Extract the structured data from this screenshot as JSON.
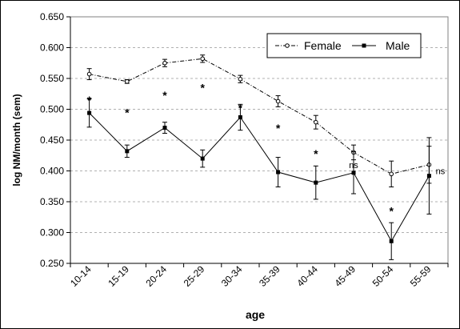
{
  "chart_data": {
    "type": "line",
    "title": "",
    "xlabel": "age",
    "ylabel": "log NM/month (sem)",
    "ylim": [
      0.25,
      0.65
    ],
    "yticks": [
      "0.250",
      "0.300",
      "0.350",
      "0.400",
      "0.450",
      "0.500",
      "0.550",
      "0.600",
      "0.650"
    ],
    "ytick_values": [
      0.25,
      0.3,
      0.35,
      0.4,
      0.45,
      0.5,
      0.55,
      0.6,
      0.65
    ],
    "categories": [
      "10-14",
      "15-19",
      "20-24",
      "25-29",
      "30-34",
      "35-39",
      "40-44",
      "45-49",
      "50-54",
      "55-59"
    ],
    "grid": "horizontal dashed",
    "legend_position": "top-right",
    "series": [
      {
        "name": "Female",
        "style": "dash-dot line, open circle markers",
        "color": "#000000",
        "values": [
          0.557,
          0.545,
          0.575,
          0.582,
          0.549,
          0.513,
          0.479,
          0.43,
          0.395,
          0.41
        ],
        "err": [
          0.009,
          0.003,
          0.006,
          0.006,
          0.006,
          0.009,
          0.011,
          0.012,
          0.021,
          0.03
        ]
      },
      {
        "name": "Male",
        "style": "solid line, filled square markers",
        "color": "#000000",
        "values": [
          0.494,
          0.432,
          0.47,
          0.42,
          0.487,
          0.398,
          0.381,
          0.397,
          0.286,
          0.392
        ],
        "err": [
          0.023,
          0.01,
          0.009,
          0.014,
          0.021,
          0.024,
          0.027,
          0.034,
          0.03,
          0.062
        ]
      }
    ],
    "annotations": [
      {
        "category": "10-14",
        "label": "*",
        "y": 0.52
      },
      {
        "category": "15-19",
        "label": "*",
        "y": 0.5
      },
      {
        "category": "20-24",
        "label": "*",
        "y": 0.528
      },
      {
        "category": "25-29",
        "label": "*",
        "y": 0.54
      },
      {
        "category": "30-34",
        "label": "*",
        "y": 0.508
      },
      {
        "category": "35-39",
        "label": "*",
        "y": 0.475
      },
      {
        "category": "40-44",
        "label": "*",
        "y": 0.433
      },
      {
        "category": "45-49",
        "label": "ns",
        "y": 0.41
      },
      {
        "category": "50-54",
        "label": "*",
        "y": 0.34
      },
      {
        "category": "55-59",
        "label": "ns",
        "y": 0.4
      }
    ]
  }
}
